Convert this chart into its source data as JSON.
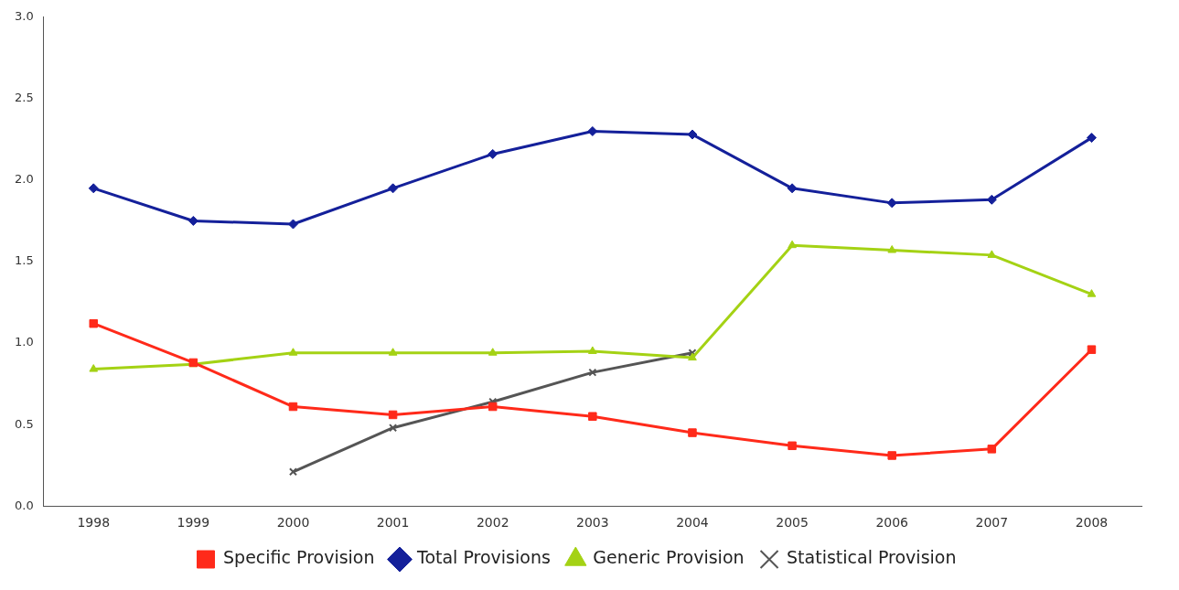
{
  "chart_data": {
    "type": "line",
    "categories": [
      "1998",
      "1999",
      "2000",
      "2001",
      "2002",
      "2003",
      "2004",
      "2005",
      "2006",
      "2007",
      "2008"
    ],
    "series": [
      {
        "name": "Total Provisions",
        "color": "#14209a",
        "marker": "diamond",
        "values": [
          1.95,
          1.75,
          1.73,
          1.95,
          2.16,
          2.3,
          2.28,
          1.95,
          1.86,
          1.88,
          2.26
        ]
      },
      {
        "name": "Generic Provision",
        "color": "#a4d214",
        "marker": "triangle",
        "values": [
          0.84,
          0.87,
          0.94,
          0.94,
          0.94,
          0.95,
          0.91,
          1.6,
          1.57,
          1.54,
          1.3
        ]
      },
      {
        "name": "Specific Provision",
        "color": "#ff2a1a",
        "marker": "square",
        "values": [
          1.12,
          0.88,
          0.61,
          0.56,
          0.61,
          0.55,
          0.45,
          0.37,
          0.31,
          0.35,
          0.96
        ]
      },
      {
        "name": "Statistical Provision",
        "color": "#555555",
        "marker": "cross",
        "values": [
          null,
          null,
          0.21,
          0.48,
          0.64,
          0.82,
          0.94,
          null,
          null,
          null,
          null
        ]
      }
    ],
    "ylim": [
      0,
      3
    ],
    "yticks": [
      {
        "value": 0,
        "label": "0.0"
      },
      0.5,
      {
        "value": 1,
        "label": "1.0"
      },
      1.5,
      {
        "value": 2,
        "label": "2.0"
      },
      2.5,
      {
        "value": 3,
        "label": "3.0"
      }
    ],
    "grid": false,
    "legend": "bottom"
  }
}
